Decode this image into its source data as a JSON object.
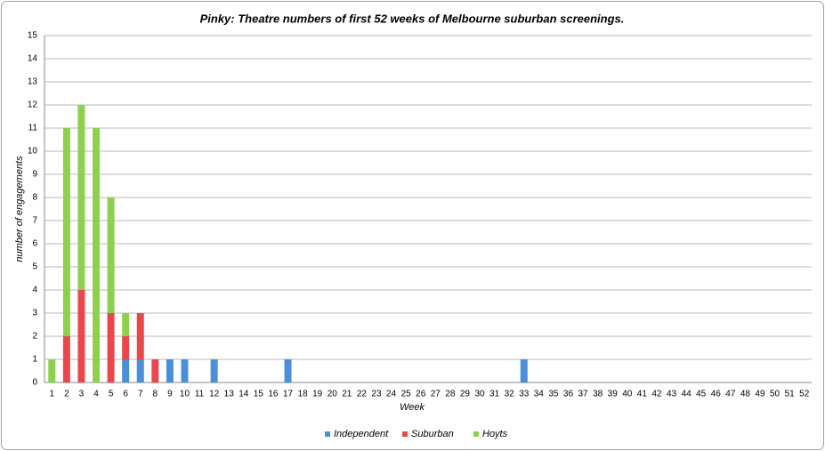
{
  "chart_data": {
    "type": "stacked_bar",
    "title": "Pinky: Theatre numbers of first 52 weeks of Melbourne suburban screenings.",
    "x_label": "Week",
    "y_label": "number of engagements",
    "categories": [
      1,
      2,
      3,
      4,
      5,
      6,
      7,
      8,
      9,
      10,
      11,
      12,
      13,
      14,
      15,
      16,
      17,
      18,
      19,
      20,
      21,
      22,
      23,
      24,
      25,
      26,
      27,
      28,
      29,
      30,
      31,
      32,
      33,
      34,
      35,
      36,
      37,
      38,
      39,
      40,
      41,
      42,
      43,
      44,
      45,
      46,
      47,
      48,
      49,
      50,
      51,
      52
    ],
    "series": [
      {
        "name": "Independent",
        "color": "#4a8fd8",
        "values": [
          0,
          0,
          0,
          0,
          0,
          1,
          1,
          0,
          1,
          1,
          0,
          1,
          0,
          0,
          0,
          0,
          1,
          0,
          0,
          0,
          0,
          0,
          0,
          0,
          0,
          0,
          0,
          0,
          0,
          0,
          0,
          0,
          1,
          0,
          0,
          0,
          0,
          0,
          0,
          0,
          0,
          0,
          0,
          0,
          0,
          0,
          0,
          0,
          0,
          0,
          0,
          0
        ]
      },
      {
        "name": "Suburban",
        "color": "#e8484b",
        "values": [
          0,
          2,
          4,
          0,
          3,
          1,
          2,
          1,
          0,
          0,
          0,
          0,
          0,
          0,
          0,
          0,
          0,
          0,
          0,
          0,
          0,
          0,
          0,
          0,
          0,
          0,
          0,
          0,
          0,
          0,
          0,
          0,
          0,
          0,
          0,
          0,
          0,
          0,
          0,
          0,
          0,
          0,
          0,
          0,
          0,
          0,
          0,
          0,
          0,
          0,
          0,
          0
        ]
      },
      {
        "name": "Hoyts",
        "color": "#8ed04c",
        "values": [
          1,
          9,
          8,
          11,
          5,
          1,
          0,
          0,
          0,
          0,
          0,
          0,
          0,
          0,
          0,
          0,
          0,
          0,
          0,
          0,
          0,
          0,
          0,
          0,
          0,
          0,
          0,
          0,
          0,
          0,
          0,
          0,
          0,
          0,
          0,
          0,
          0,
          0,
          0,
          0,
          0,
          0,
          0,
          0,
          0,
          0,
          0,
          0,
          0,
          0,
          0,
          0
        ]
      }
    ],
    "ylim": [
      0,
      15
    ],
    "yticks": [
      0,
      1,
      2,
      3,
      4,
      5,
      6,
      7,
      8,
      9,
      10,
      11,
      12,
      13,
      14,
      15
    ],
    "grid": true,
    "legend": "bottom"
  }
}
